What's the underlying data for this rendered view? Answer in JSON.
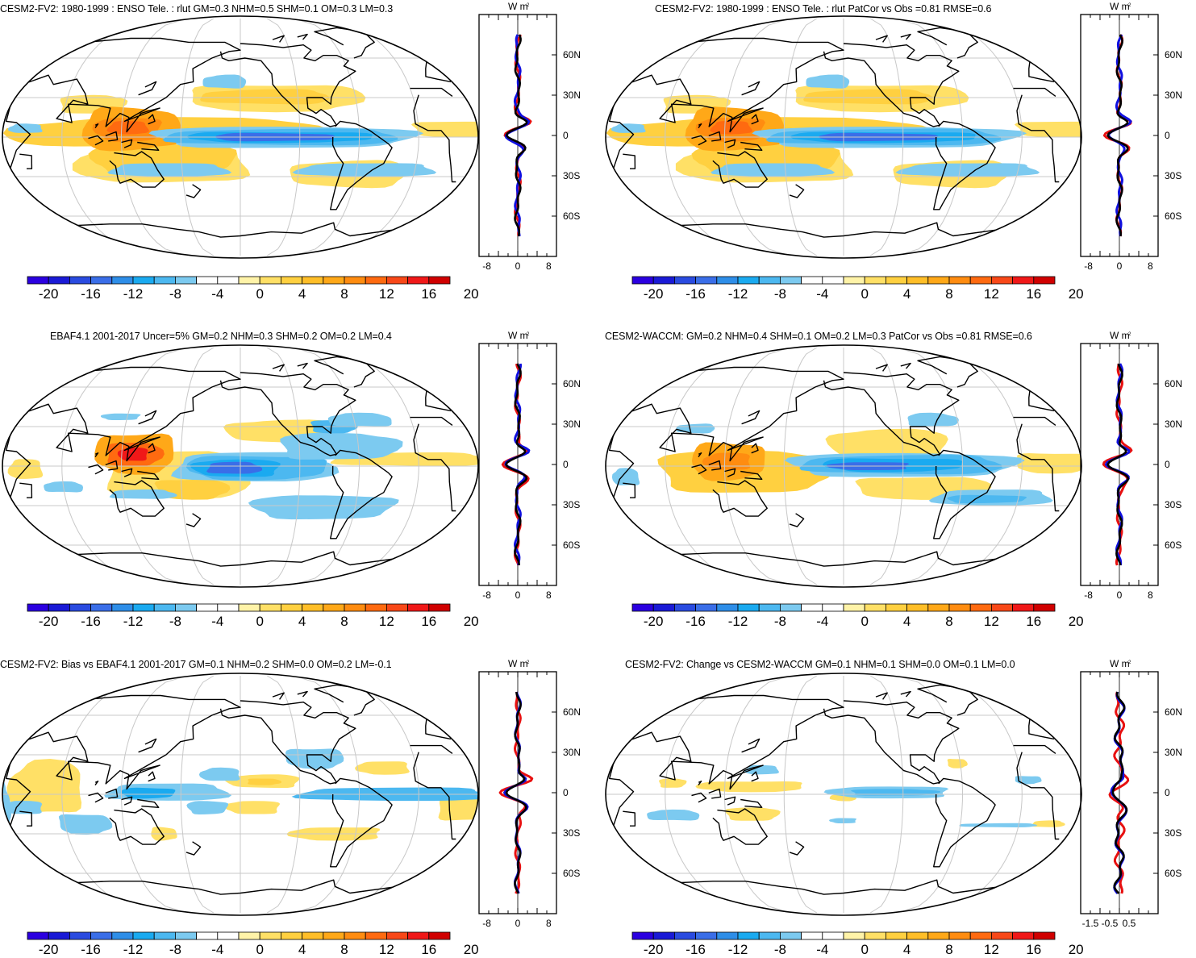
{
  "colorbar": {
    "colors": [
      "#2b00e0",
      "#1a1ad6",
      "#2a4be0",
      "#3a6ee8",
      "#2e8ee8",
      "#1aaaf0",
      "#4cb8f0",
      "#7ccaf0",
      "#ffffff",
      "#ffffff",
      "#fff3a8",
      "#ffe066",
      "#ffd040",
      "#ffbe28",
      "#ffa818",
      "#ff8c10",
      "#ff6a10",
      "#f84818",
      "#f01818",
      "#d00000"
    ],
    "ticks": [
      "-20",
      "-16",
      "-12",
      "-8",
      "-4",
      "0",
      "4",
      "8",
      "12",
      "16",
      "20"
    ]
  },
  "zonal": {
    "units": "W m",
    "units_sup": "-2",
    "lat_labels": [
      "60N",
      "30N",
      "0",
      "30S",
      "60S"
    ],
    "x_ticks_default": [
      "-8",
      "0",
      "8"
    ],
    "x_ticks_change": [
      "-1.5",
      "-0.5",
      "0.5"
    ],
    "colors": {
      "model": "#e81010",
      "obs": "#1010e0",
      "bias": "#000000"
    }
  },
  "panels": [
    {
      "id": "p1",
      "title": "CESM2-FV2: 1980-1999 : ENSO Tele. : rlut GM=0.3 NHM=0.5 SHM=0.1 OM=0.3 LM=0.3",
      "scheme": "enso_model",
      "xticks": "default"
    },
    {
      "id": "p2",
      "title": "CESM2-FV2: 1980-1999 : ENSO Tele. : rlut PatCor vs Obs =0.81 RMSE=0.6",
      "scheme": "enso_model",
      "xticks": "default"
    },
    {
      "id": "p3",
      "title": "EBAF4.1 2001-2017 Uncer=5% GM=0.2 NHM=0.3 SHM=0.2 OM=0.2 LM=0.4",
      "scheme": "enso_obs",
      "xticks": "default"
    },
    {
      "id": "p4",
      "title": "CESM2-WACCM: GM=0.2 NHM=0.4 SHM=0.1 OM=0.2 LM=0.3 PatCor vs Obs =0.81 RMSE=0.6",
      "scheme": "enso_waccm",
      "xticks": "default"
    },
    {
      "id": "p5",
      "title": "CESM2-FV2: Bias vs EBAF4.1 2001-2017 GM=0.1 NHM=0.2 SHM=0.0 OM=0.2 LM=-0.1",
      "scheme": "bias",
      "xticks": "default"
    },
    {
      "id": "p6",
      "title": "CESM2-FV2: Change vs CESM2-WACCM GM=0.1 NHM=0.1 SHM=0.0 OM=0.1 LM=0.0",
      "scheme": "change",
      "xticks": "change"
    }
  ]
}
